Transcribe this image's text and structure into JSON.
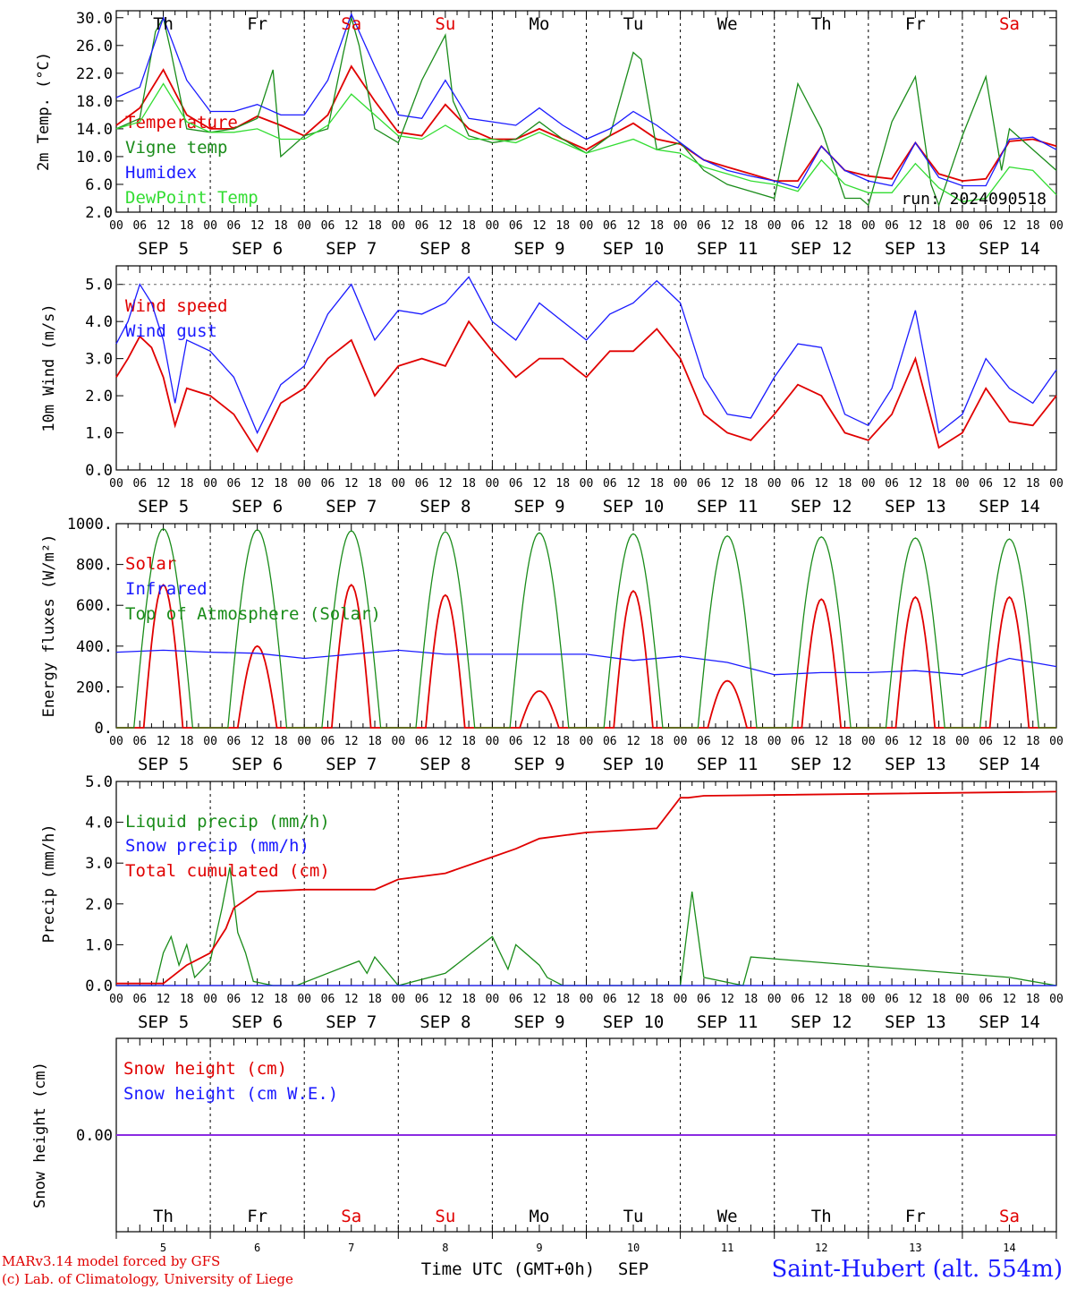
{
  "colors": {
    "red": "#e00000",
    "green": "#1a8c1a",
    "blue": "#1a1aff",
    "lightgreen": "#33dd33",
    "purple": "#8a2be2",
    "axis": "#000000"
  },
  "days": [
    {
      "dow": "Th",
      "date": "SEP 5",
      "num": "5",
      "weekend": false
    },
    {
      "dow": "Fr",
      "date": "SEP 6",
      "num": "6",
      "weekend": false
    },
    {
      "dow": "Sa",
      "date": "SEP 7",
      "num": "7",
      "weekend": true
    },
    {
      "dow": "Su",
      "date": "SEP 8",
      "num": "8",
      "weekend": true
    },
    {
      "dow": "Mo",
      "date": "SEP 9",
      "num": "9",
      "weekend": false
    },
    {
      "dow": "Tu",
      "date": "SEP 10",
      "num": "10",
      "weekend": false
    },
    {
      "dow": "We",
      "date": "SEP 11",
      "num": "11",
      "weekend": false
    },
    {
      "dow": "Th",
      "date": "SEP 12",
      "num": "12",
      "weekend": false
    },
    {
      "dow": "Fr",
      "date": "SEP 13",
      "num": "13",
      "weekend": false
    },
    {
      "dow": "Sa",
      "date": "SEP 14",
      "num": "14",
      "weekend": true
    }
  ],
  "hour_ticks": [
    "00",
    "06",
    "12",
    "18"
  ],
  "run_label": "run: 2024090518",
  "xaxis_label": "Time UTC (GMT+0h)",
  "month_label": "SEP",
  "footer": {
    "model": "MARv3.14 model forced by GFS",
    "lab": "(c) Lab. of Climatology, University of Liege",
    "station": "Saint-Hubert (alt. 554m)"
  },
  "chart_data": [
    {
      "type": "line",
      "ylabel": "2m Temp. (°C)",
      "ylim": [
        2,
        31
      ],
      "yticks": [
        "2.0",
        "6.0",
        "10.0",
        "14.0",
        "18.0",
        "22.0",
        "26.0",
        "30.0"
      ],
      "x_unit": "hours since 2024-09-05 00 UTC",
      "series": [
        {
          "name": "Temperature",
          "color": "red",
          "x": [
            0,
            6,
            12,
            18,
            24,
            30,
            36,
            42,
            48,
            54,
            60,
            66,
            72,
            78,
            84,
            90,
            96,
            102,
            108,
            114,
            120,
            126,
            132,
            138,
            144,
            150,
            156,
            162,
            168,
            174,
            180,
            186,
            192,
            198,
            204,
            210,
            216,
            222,
            228,
            234,
            240
          ],
          "values": [
            14.5,
            17,
            22.5,
            16,
            14,
            14,
            15.8,
            14.5,
            13,
            16,
            23,
            18,
            13.5,
            13,
            17.5,
            14,
            12.5,
            12.5,
            14,
            12.5,
            11,
            13,
            14.8,
            12.5,
            11.8,
            9.5,
            8.5,
            7.5,
            6.5,
            6.5,
            11.5,
            8,
            7.2,
            6.8,
            12,
            7.5,
            6.5,
            6.8,
            12.2,
            12.5,
            11.5
          ]
        },
        {
          "name": "Vigne temp",
          "color": "green",
          "x": [
            0,
            6,
            10,
            12,
            14,
            18,
            24,
            30,
            36,
            40,
            42,
            48,
            54,
            58,
            60,
            62,
            66,
            72,
            78,
            84,
            86,
            90,
            96,
            102,
            108,
            114,
            120,
            126,
            132,
            134,
            138,
            144,
            150,
            156,
            162,
            168,
            174,
            180,
            186,
            190,
            192,
            198,
            204,
            208,
            210,
            216,
            222,
            226,
            228,
            232,
            240
          ],
          "values": [
            14,
            15.5,
            28,
            30,
            25,
            14,
            13.5,
            14,
            15.5,
            22.5,
            10,
            13,
            14,
            25,
            30,
            26,
            14,
            12,
            21,
            27.5,
            18,
            13,
            12,
            12.5,
            15,
            12.5,
            10.5,
            13,
            25,
            24,
            11,
            12,
            8,
            6,
            5,
            4,
            20.5,
            14,
            4,
            4,
            3,
            15,
            21.5,
            6,
            3,
            13,
            21.5,
            8,
            14,
            12,
            8
          ]
        },
        {
          "name": "Humidex",
          "color": "blue",
          "x": [
            0,
            6,
            12,
            18,
            24,
            30,
            36,
            42,
            48,
            54,
            60,
            66,
            72,
            78,
            84,
            90,
            96,
            102,
            108,
            114,
            120,
            126,
            132,
            138,
            144,
            150,
            156,
            162,
            168,
            174,
            180,
            186,
            192,
            198,
            204,
            210,
            216,
            222,
            228,
            234,
            240
          ],
          "values": [
            18.5,
            20,
            30,
            21,
            16.5,
            16.5,
            17.5,
            16,
            16,
            21,
            30.5,
            23,
            16,
            15.5,
            21,
            15.5,
            15,
            14.5,
            17,
            14.5,
            12.5,
            14,
            16.5,
            14.5,
            12,
            9.5,
            8,
            7.2,
            6.5,
            5.5,
            11.5,
            8,
            6.5,
            5.8,
            12,
            7,
            5.8,
            5.8,
            12.5,
            12.8,
            11
          ]
        },
        {
          "name": "DewPoint Temp",
          "color": "lightgreen",
          "x": [
            0,
            6,
            12,
            18,
            24,
            30,
            36,
            42,
            48,
            54,
            60,
            66,
            72,
            78,
            84,
            90,
            96,
            102,
            108,
            114,
            120,
            126,
            132,
            138,
            144,
            150,
            156,
            162,
            168,
            174,
            180,
            186,
            192,
            198,
            204,
            210,
            216,
            222,
            228,
            234,
            240
          ],
          "values": [
            14,
            15,
            20.5,
            15,
            13.5,
            13.5,
            14,
            12.5,
            12.5,
            14.5,
            19,
            16,
            13,
            12.5,
            14.5,
            12.5,
            12.5,
            12,
            13.5,
            12,
            10.5,
            11.5,
            12.5,
            11,
            10.5,
            8.5,
            7.5,
            6.5,
            6,
            5,
            9.5,
            6,
            4.8,
            4.8,
            9,
            5.5,
            3.5,
            4,
            8.5,
            8,
            4.5
          ]
        }
      ]
    },
    {
      "type": "line",
      "ylabel": "10m Wind (m/s)",
      "ylim": [
        0,
        5.5
      ],
      "yticks": [
        "0.0",
        "1.0",
        "2.0",
        "3.0",
        "4.0",
        "5.0"
      ],
      "dashed_line": 5,
      "series": [
        {
          "name": "Wind speed",
          "color": "red",
          "x": [
            0,
            3,
            6,
            9,
            12,
            15,
            18,
            24,
            30,
            36,
            42,
            48,
            54,
            60,
            66,
            72,
            78,
            84,
            90,
            96,
            102,
            108,
            114,
            120,
            126,
            132,
            138,
            144,
            150,
            156,
            162,
            168,
            174,
            180,
            186,
            192,
            198,
            204,
            210,
            216,
            222,
            228,
            234,
            240
          ],
          "values": [
            2.5,
            3,
            3.6,
            3.3,
            2.5,
            1.2,
            2.2,
            2,
            1.5,
            0.5,
            1.8,
            2.2,
            3,
            3.5,
            2,
            2.8,
            3,
            2.8,
            4,
            3.2,
            2.5,
            3,
            3,
            2.5,
            3.2,
            3.2,
            3.8,
            3,
            1.5,
            1,
            0.8,
            1.5,
            2.3,
            2,
            1,
            0.8,
            1.5,
            3,
            0.6,
            1,
            2.2,
            1.3,
            1.2,
            2
          ]
        },
        {
          "name": "Wind gust",
          "color": "blue",
          "x": [
            0,
            3,
            6,
            9,
            12,
            15,
            18,
            24,
            30,
            36,
            42,
            48,
            54,
            60,
            66,
            72,
            78,
            84,
            90,
            96,
            102,
            108,
            114,
            120,
            126,
            132,
            138,
            144,
            150,
            156,
            162,
            168,
            174,
            180,
            186,
            192,
            198,
            204,
            210,
            216,
            222,
            228,
            234,
            240
          ],
          "values": [
            3.4,
            4,
            5,
            4.5,
            3.5,
            1.8,
            3.5,
            3.2,
            2.5,
            1,
            2.3,
            2.8,
            4.2,
            5,
            3.5,
            4.3,
            4.2,
            4.5,
            5.2,
            4,
            3.5,
            4.5,
            4,
            3.5,
            4.2,
            4.5,
            5.1,
            4.5,
            2.5,
            1.5,
            1.4,
            2.5,
            3.4,
            3.3,
            1.5,
            1.2,
            2.2,
            4.3,
            1,
            1.5,
            3,
            2.2,
            1.8,
            2.7
          ]
        }
      ]
    },
    {
      "type": "line",
      "ylabel": "Energy fluxes (W/m²)",
      "ylim": [
        0,
        1000
      ],
      "yticks": [
        "0.",
        "200.",
        "400.",
        "600.",
        "800.",
        "1000."
      ],
      "series": [
        {
          "name": "Solar",
          "color": "red",
          "peaks": [
            700,
            400,
            700,
            650,
            180,
            670,
            230,
            630,
            640,
            640
          ]
        },
        {
          "name": "Infrared",
          "color": "blue",
          "x": [
            0,
            12,
            24,
            36,
            48,
            60,
            72,
            84,
            96,
            108,
            120,
            132,
            144,
            156,
            168,
            180,
            192,
            204,
            216,
            228,
            240
          ],
          "values": [
            370,
            380,
            370,
            365,
            340,
            360,
            380,
            360,
            360,
            360,
            360,
            330,
            350,
            320,
            260,
            270,
            270,
            280,
            260,
            340,
            300
          ]
        },
        {
          "name": "Top of Atmosphere (Solar)",
          "color": "green",
          "peaks": [
            975,
            970,
            965,
            960,
            955,
            950,
            940,
            935,
            930,
            925
          ]
        }
      ]
    },
    {
      "type": "line",
      "ylabel": "Precip (mm/h)",
      "ylim": [
        0,
        5
      ],
      "yticks": [
        "0.0",
        "1.0",
        "2.0",
        "3.0",
        "4.0",
        "5.0"
      ],
      "series": [
        {
          "name": "Liquid precip (mm/h)",
          "color": "green",
          "x": [
            0,
            10,
            12,
            14,
            16,
            18,
            20,
            24,
            27,
            29,
            31,
            33,
            35,
            40,
            46,
            62,
            64,
            66,
            72,
            84,
            96,
            100,
            102,
            108,
            110,
            114,
            120,
            144,
            147,
            150,
            160,
            162,
            228,
            240
          ],
          "values": [
            0,
            0,
            0.8,
            1.2,
            0.5,
            1,
            0.2,
            0.6,
            1.9,
            2.9,
            1.3,
            0.8,
            0.1,
            0,
            0,
            0.6,
            0.3,
            0.7,
            0,
            0.3,
            1.2,
            0.4,
            1,
            0.5,
            0.2,
            0,
            0,
            0,
            2.3,
            0.2,
            0,
            0.7,
            0.2,
            0
          ]
        },
        {
          "name": "Snow precip (mm/h)",
          "color": "blue",
          "x": [
            0,
            240
          ],
          "values": [
            0,
            0
          ]
        },
        {
          "name": "Total cumulated (cm)",
          "color": "red",
          "x": [
            0,
            12,
            18,
            24,
            28,
            30,
            36,
            48,
            66,
            72,
            84,
            96,
            102,
            108,
            120,
            138,
            144,
            146,
            150,
            240
          ],
          "values": [
            0.05,
            0.05,
            0.5,
            0.8,
            1.4,
            1.9,
            2.3,
            2.35,
            2.35,
            2.6,
            2.75,
            3.15,
            3.35,
            3.6,
            3.75,
            3.85,
            4.6,
            4.6,
            4.65,
            4.75
          ]
        }
      ]
    },
    {
      "type": "line",
      "ylabel": "Snow height (cm)",
      "ylim": [
        -1,
        1
      ],
      "yticks": [
        "0.00"
      ],
      "series": [
        {
          "name": "Snow height (cm)",
          "color": "red",
          "x": [
            0,
            240
          ],
          "values": [
            0,
            0
          ]
        },
        {
          "name": "Snow height (cm W.E.)",
          "color": "blue",
          "x": [
            0,
            240
          ],
          "values": [
            0,
            0
          ]
        }
      ]
    }
  ]
}
